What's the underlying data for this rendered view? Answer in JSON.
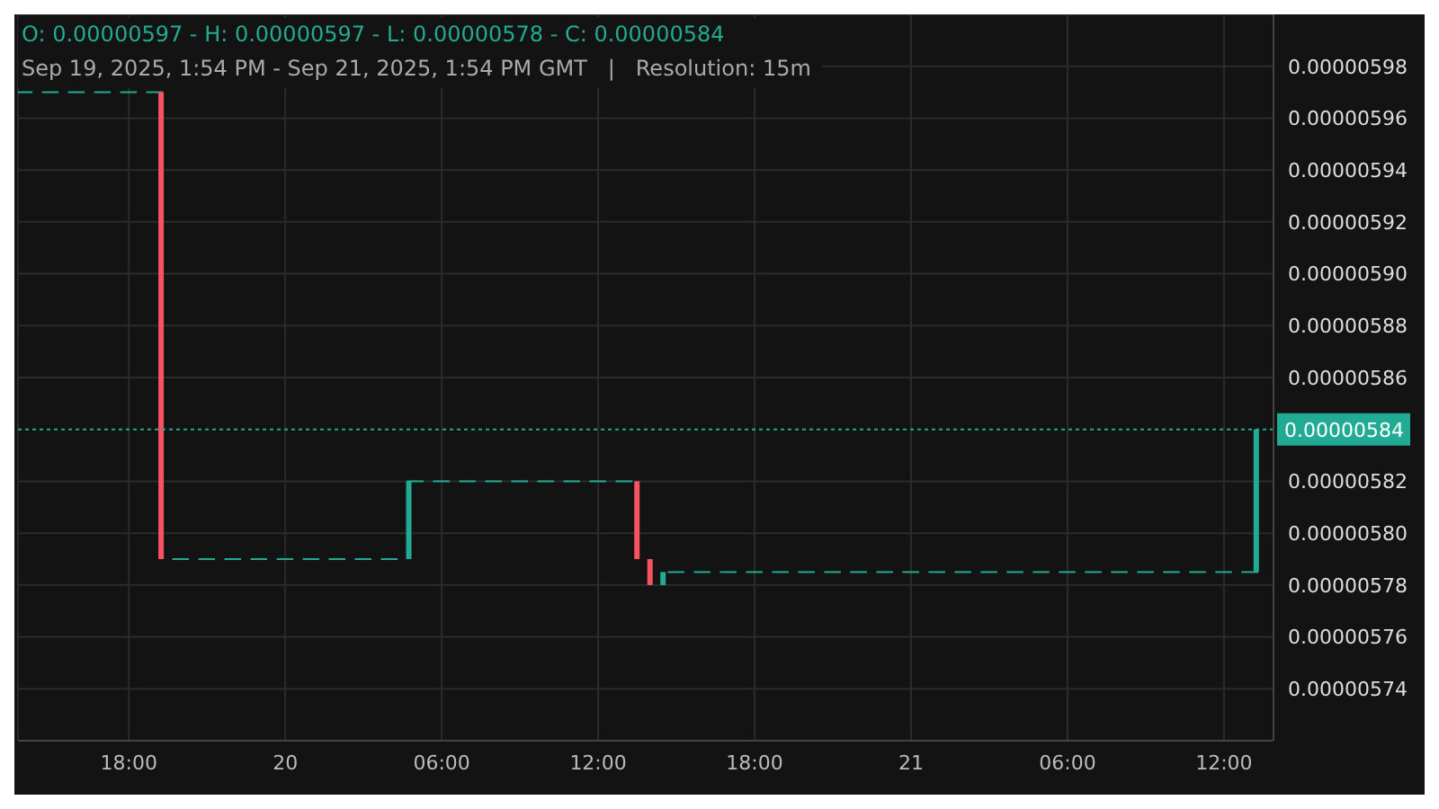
{
  "chart_data": {
    "type": "candlestick",
    "title": "O: 0.00000597 - H: 0.00000597 - L: 0.00000578 - C: 0.00000584",
    "subtitle": "Sep 19, 2025, 1:54 PM - Sep 21, 2025, 1:54 PM GMT   |   Resolution: 15m",
    "x": [
      "2025-09-19T14:00",
      "2025-09-19T15:00",
      "2025-09-19T16:00",
      "2025-09-19T17:00",
      "2025-09-19T18:00",
      "2025-09-19T19:00",
      "2025-09-19T19:15",
      "2025-09-19T20:00",
      "2025-09-19T21:00",
      "2025-09-19T22:00",
      "2025-09-19T23:00",
      "2025-09-20T00:00",
      "2025-09-20T01:00",
      "2025-09-20T02:00",
      "2025-09-20T03:00",
      "2025-09-20T04:00",
      "2025-09-20T04:45",
      "2025-09-20T05:00",
      "2025-09-20T06:00",
      "2025-09-20T07:00",
      "2025-09-20T08:00",
      "2025-09-20T09:00",
      "2025-09-20T10:00",
      "2025-09-20T11:00",
      "2025-09-20T12:00",
      "2025-09-20T13:00",
      "2025-09-20T13:30",
      "2025-09-20T14:00",
      "2025-09-20T14:30",
      "2025-09-20T15:00",
      "2025-09-20T16:00",
      "2025-09-20T17:00",
      "2025-09-20T18:00",
      "2025-09-20T19:00",
      "2025-09-20T20:00",
      "2025-09-20T21:00",
      "2025-09-20T22:00",
      "2025-09-20T23:00",
      "2025-09-21T00:00",
      "2025-09-21T01:00",
      "2025-09-21T02:00",
      "2025-09-21T03:00",
      "2025-09-21T04:00",
      "2025-09-21T05:00",
      "2025-09-21T06:00",
      "2025-09-21T07:00",
      "2025-09-21T08:00",
      "2025-09-21T09:00",
      "2025-09-21T10:00",
      "2025-09-21T11:00",
      "2025-09-21T12:00",
      "2025-09-21T13:00",
      "2025-09-21T13:15"
    ],
    "ohlc": [
      [
        5.97e-06,
        5.97e-06,
        5.97e-06,
        5.97e-06
      ],
      [
        5.97e-06,
        5.97e-06,
        5.97e-06,
        5.97e-06
      ],
      [
        5.97e-06,
        5.97e-06,
        5.97e-06,
        5.97e-06
      ],
      [
        5.97e-06,
        5.97e-06,
        5.97e-06,
        5.97e-06
      ],
      [
        5.97e-06,
        5.97e-06,
        5.97e-06,
        5.97e-06
      ],
      [
        5.97e-06,
        5.97e-06,
        5.97e-06,
        5.97e-06
      ],
      [
        5.97e-06,
        5.97e-06,
        5.79e-06,
        5.79e-06
      ],
      [
        5.79e-06,
        5.79e-06,
        5.79e-06,
        5.79e-06
      ],
      [
        5.79e-06,
        5.79e-06,
        5.79e-06,
        5.79e-06
      ],
      [
        5.79e-06,
        5.79e-06,
        5.79e-06,
        5.79e-06
      ],
      [
        5.79e-06,
        5.79e-06,
        5.79e-06,
        5.79e-06
      ],
      [
        5.79e-06,
        5.79e-06,
        5.79e-06,
        5.79e-06
      ],
      [
        5.79e-06,
        5.79e-06,
        5.79e-06,
        5.79e-06
      ],
      [
        5.79e-06,
        5.79e-06,
        5.79e-06,
        5.79e-06
      ],
      [
        5.79e-06,
        5.79e-06,
        5.79e-06,
        5.79e-06
      ],
      [
        5.79e-06,
        5.79e-06,
        5.79e-06,
        5.79e-06
      ],
      [
        5.79e-06,
        5.82e-06,
        5.79e-06,
        5.82e-06
      ],
      [
        5.82e-06,
        5.82e-06,
        5.82e-06,
        5.82e-06
      ],
      [
        5.82e-06,
        5.82e-06,
        5.82e-06,
        5.82e-06
      ],
      [
        5.82e-06,
        5.82e-06,
        5.82e-06,
        5.82e-06
      ],
      [
        5.82e-06,
        5.82e-06,
        5.82e-06,
        5.82e-06
      ],
      [
        5.82e-06,
        5.82e-06,
        5.82e-06,
        5.82e-06
      ],
      [
        5.82e-06,
        5.82e-06,
        5.82e-06,
        5.82e-06
      ],
      [
        5.82e-06,
        5.82e-06,
        5.82e-06,
        5.82e-06
      ],
      [
        5.82e-06,
        5.82e-06,
        5.82e-06,
        5.82e-06
      ],
      [
        5.82e-06,
        5.82e-06,
        5.82e-06,
        5.82e-06
      ],
      [
        5.82e-06,
        5.82e-06,
        5.79e-06,
        5.79e-06
      ],
      [
        5.79e-06,
        5.79e-06,
        5.78e-06,
        5.78e-06
      ],
      [
        5.78e-06,
        5.785e-06,
        5.78e-06,
        5.785e-06
      ],
      [
        5.785e-06,
        5.785e-06,
        5.785e-06,
        5.785e-06
      ],
      [
        5.785e-06,
        5.785e-06,
        5.785e-06,
        5.785e-06
      ],
      [
        5.785e-06,
        5.785e-06,
        5.785e-06,
        5.785e-06
      ],
      [
        5.785e-06,
        5.785e-06,
        5.785e-06,
        5.785e-06
      ],
      [
        5.785e-06,
        5.785e-06,
        5.785e-06,
        5.785e-06
      ],
      [
        5.785e-06,
        5.785e-06,
        5.785e-06,
        5.785e-06
      ],
      [
        5.785e-06,
        5.785e-06,
        5.785e-06,
        5.785e-06
      ],
      [
        5.785e-06,
        5.785e-06,
        5.785e-06,
        5.785e-06
      ],
      [
        5.785e-06,
        5.785e-06,
        5.785e-06,
        5.785e-06
      ],
      [
        5.785e-06,
        5.785e-06,
        5.785e-06,
        5.785e-06
      ],
      [
        5.785e-06,
        5.785e-06,
        5.785e-06,
        5.785e-06
      ],
      [
        5.785e-06,
        5.785e-06,
        5.785e-06,
        5.785e-06
      ],
      [
        5.785e-06,
        5.785e-06,
        5.785e-06,
        5.785e-06
      ],
      [
        5.785e-06,
        5.785e-06,
        5.785e-06,
        5.785e-06
      ],
      [
        5.785e-06,
        5.785e-06,
        5.785e-06,
        5.785e-06
      ],
      [
        5.785e-06,
        5.785e-06,
        5.785e-06,
        5.785e-06
      ],
      [
        5.785e-06,
        5.785e-06,
        5.785e-06,
        5.785e-06
      ],
      [
        5.785e-06,
        5.785e-06,
        5.785e-06,
        5.785e-06
      ],
      [
        5.785e-06,
        5.785e-06,
        5.785e-06,
        5.785e-06
      ],
      [
        5.785e-06,
        5.785e-06,
        5.785e-06,
        5.785e-06
      ],
      [
        5.785e-06,
        5.785e-06,
        5.785e-06,
        5.785e-06
      ],
      [
        5.785e-06,
        5.785e-06,
        5.785e-06,
        5.785e-06
      ],
      [
        5.785e-06,
        5.785e-06,
        5.785e-06,
        5.785e-06
      ],
      [
        5.785e-06,
        5.84e-06,
        5.785e-06,
        5.84e-06
      ]
    ],
    "colors": [
      "#22ab94",
      "#22ab94",
      "#22ab94",
      "#22ab94",
      "#22ab94",
      "#22ab94",
      "#f7525f",
      "#22ab94",
      "#22ab94",
      "#22ab94",
      "#22ab94",
      "#22ab94",
      "#22ab94",
      "#22ab94",
      "#22ab94",
      "#22ab94",
      "#22ab94",
      "#22ab94",
      "#22ab94",
      "#22ab94",
      "#22ab94",
      "#22ab94",
      "#22ab94",
      "#22ab94",
      "#22ab94",
      "#22ab94",
      "#f7525f",
      "#f7525f",
      "#22ab94",
      "#22ab94",
      "#22ab94",
      "#22ab94",
      "#22ab94",
      "#22ab94",
      "#22ab94",
      "#22ab94",
      "#22ab94",
      "#22ab94",
      "#22ab94",
      "#22ab94",
      "#22ab94",
      "#22ab94",
      "#22ab94",
      "#22ab94",
      "#22ab94",
      "#22ab94",
      "#22ab94",
      "#22ab94",
      "#22ab94",
      "#22ab94",
      "#22ab94",
      "#22ab94",
      "#22ab94"
    ],
    "xlim": [
      "2025-09-19T13:45",
      "2025-09-21T13:54"
    ],
    "xticks": [
      {
        "value": "2025-09-19T18:00",
        "label": "18:00"
      },
      {
        "value": "2025-09-20T00:00",
        "label": "20"
      },
      {
        "value": "2025-09-20T06:00",
        "label": "06:00"
      },
      {
        "value": "2025-09-20T12:00",
        "label": "12:00"
      },
      {
        "value": "2025-09-20T18:00",
        "label": "18:00"
      },
      {
        "value": "2025-09-21T00:00",
        "label": "21"
      },
      {
        "value": "2025-09-21T06:00",
        "label": "06:00"
      },
      {
        "value": "2025-09-21T12:00",
        "label": "12:00"
      }
    ],
    "ylim": [
      5.72e-06,
      6e-06
    ],
    "yticks": [
      {
        "value": 5.74e-06,
        "label": "0.00000574"
      },
      {
        "value": 5.76e-06,
        "label": "0.00000576"
      },
      {
        "value": 5.78e-06,
        "label": "0.00000578"
      },
      {
        "value": 5.8e-06,
        "label": "0.00000580"
      },
      {
        "value": 5.82e-06,
        "label": "0.00000582"
      },
      {
        "value": 5.86e-06,
        "label": "0.00000586"
      },
      {
        "value": 5.88e-06,
        "label": "0.00000588"
      },
      {
        "value": 5.9e-06,
        "label": "0.00000590"
      },
      {
        "value": 5.92e-06,
        "label": "0.00000592"
      },
      {
        "value": 5.94e-06,
        "label": "0.00000594"
      },
      {
        "value": 5.96e-06,
        "label": "0.00000596"
      },
      {
        "value": 5.98e-06,
        "label": "0.00000598"
      }
    ],
    "ref_lines": [
      {
        "axis": "y",
        "value": 5.84e-06,
        "label": "0.00000584",
        "color": "#22ab94",
        "line_style": "dotted"
      }
    ],
    "grid": true
  }
}
